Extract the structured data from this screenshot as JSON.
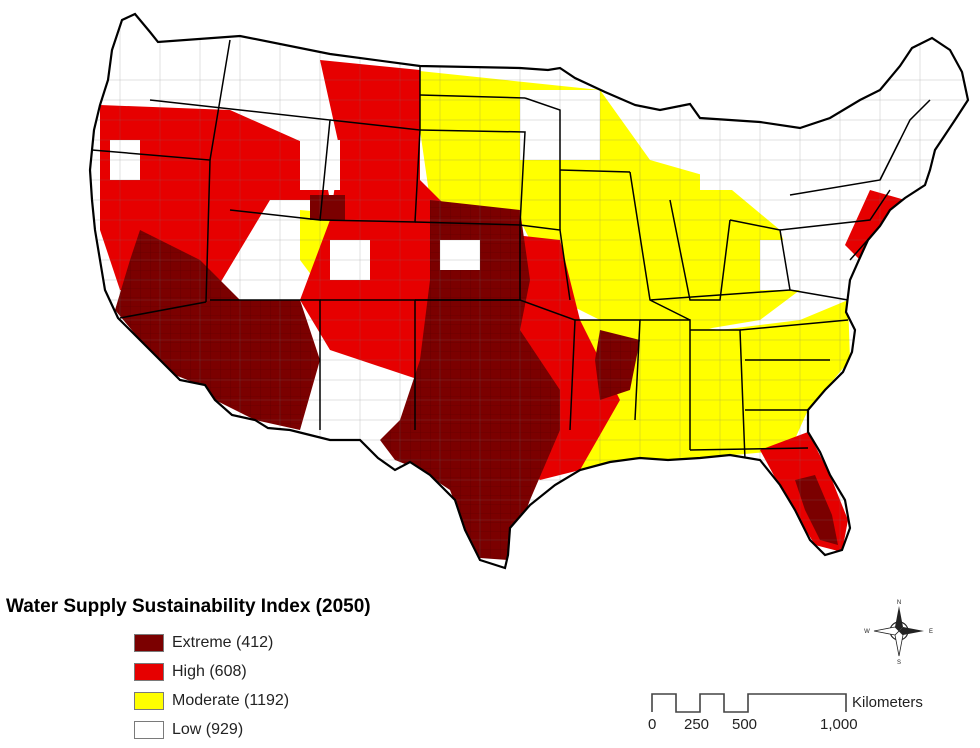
{
  "legend": {
    "title": "Water Supply Sustainability Index (2050)",
    "items": [
      {
        "key": "extreme",
        "label": "Extreme (412)",
        "color": "#7b0000"
      },
      {
        "key": "high",
        "label": "High (608)",
        "color": "#e60000"
      },
      {
        "key": "moderate",
        "label": "Moderate (1192)",
        "color": "#ffff00"
      },
      {
        "key": "low",
        "label": "Low (929)",
        "color": "#ffffff"
      }
    ]
  },
  "scale": {
    "unit": "Kilometers",
    "ticks": [
      "0",
      "250",
      "500",
      "1,000"
    ]
  },
  "compass": {
    "icon": "north-arrow-compass-icon",
    "n": "N",
    "s": "S",
    "e": "E",
    "w": "W"
  },
  "colors": {
    "border": "#000000",
    "county_line": "#666666"
  }
}
